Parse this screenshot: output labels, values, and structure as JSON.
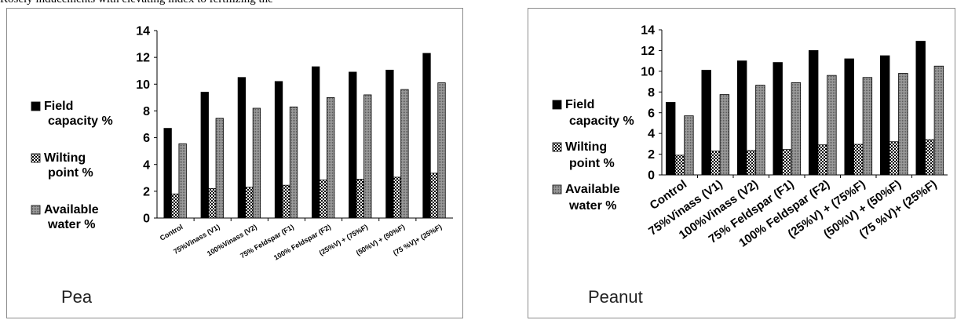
{
  "page": {
    "top_fragment": "Rosely inducements with elevating index to fertilizing the"
  },
  "colors": {
    "field_capacity": "#000000",
    "wilting_point": "#000000",
    "available_water": "#9a9a9a",
    "axis": "#000000"
  },
  "legend": [
    {
      "lines": [
        "Field",
        "capacity %"
      ],
      "pattern": "solid"
    },
    {
      "lines": [
        "Wilting",
        "point %"
      ],
      "pattern": "checker"
    },
    {
      "lines": [
        "Available",
        "water %"
      ],
      "pattern": "dots"
    }
  ],
  "chart_data": [
    {
      "type": "bar",
      "panel_label": "Pea",
      "categories": [
        "Control",
        "75%Vinass (V1)",
        "100%Vinass (V2)",
        "75% Feldspar (F1)",
        "100% Feldspar (F2)",
        "(25%V) + (75%F)",
        "(50%V) + (50%F)",
        "(75 %V)+ (25%F)"
      ],
      "series": [
        {
          "name": "Field capacity %",
          "values": [
            6.7,
            9.4,
            10.5,
            10.2,
            11.3,
            10.9,
            11.05,
            12.3
          ]
        },
        {
          "name": "Wilting point %",
          "values": [
            1.8,
            2.2,
            2.3,
            2.45,
            2.85,
            2.9,
            3.05,
            3.35
          ]
        },
        {
          "name": "Available water %",
          "values": [
            5.55,
            7.45,
            8.2,
            8.3,
            9.0,
            9.2,
            9.6,
            10.1
          ]
        }
      ],
      "yticks": [
        0,
        2,
        4,
        6,
        8,
        10,
        12,
        14
      ],
      "ylim": [
        0,
        14
      ],
      "grid": false,
      "legend_position": "left"
    },
    {
      "type": "bar",
      "panel_label": "Peanut",
      "categories": [
        "Control",
        "75%Vinass (V1)",
        "100%Vinass (V2)",
        "75% Feldspar (F1)",
        "100% Feldspar (F2)",
        "(25%V) + (75%F)",
        "(50%V) + (50%F)",
        "(75 %V)+ (25%F)"
      ],
      "series": [
        {
          "name": "Field capacity %",
          "values": [
            7.0,
            10.1,
            11.0,
            10.85,
            12.0,
            11.2,
            11.5,
            12.9
          ]
        },
        {
          "name": "Wilting point %",
          "values": [
            1.9,
            2.3,
            2.35,
            2.45,
            2.9,
            2.95,
            3.2,
            3.4
          ]
        },
        {
          "name": "Available water %",
          "values": [
            5.7,
            7.75,
            8.65,
            8.9,
            9.6,
            9.4,
            9.8,
            10.5
          ]
        }
      ],
      "yticks": [
        0,
        2,
        4,
        6,
        8,
        10,
        12,
        14
      ],
      "ylim": [
        0,
        14
      ],
      "grid": false,
      "legend_position": "left"
    }
  ]
}
